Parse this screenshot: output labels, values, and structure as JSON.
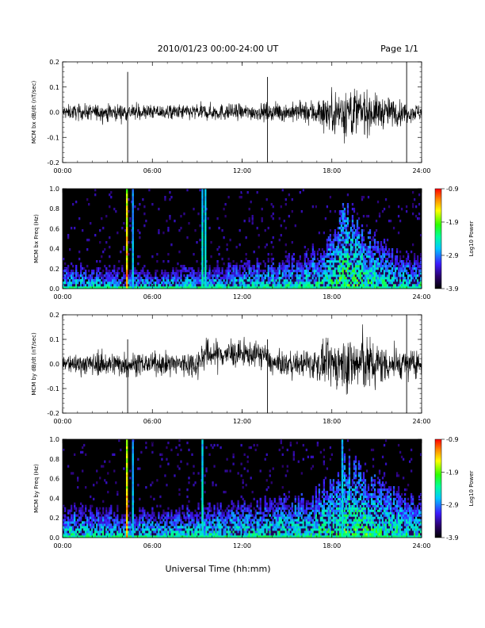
{
  "header": {
    "title": "2010/01/23  00:00-24:00 UT",
    "page": "Page 1/1"
  },
  "footer": {
    "xlabel": "Universal Time (hh:mm)"
  },
  "colors": {
    "trace": "#000000",
    "spectrogram_bg": "#000000"
  },
  "chart_data": [
    {
      "type": "line",
      "ylabel": "MCM bx dB/dt (nT/sec)",
      "xlim": [
        0,
        24
      ],
      "ylim": [
        -0.2,
        0.2
      ],
      "xticks": [
        "00:00",
        "06:00",
        "12:00",
        "18:00",
        "24:00"
      ],
      "yticks": [
        "-0.2",
        "-0.1",
        "0.0",
        "0.1",
        "0.2"
      ],
      "envelope": {
        "x_hours": [
          0,
          2,
          4,
          6,
          8,
          10,
          12,
          14,
          16,
          17,
          18,
          19,
          20,
          21,
          22,
          23,
          24
        ],
        "amplitude": [
          0.025,
          0.028,
          0.03,
          0.025,
          0.028,
          0.03,
          0.028,
          0.03,
          0.035,
          0.05,
          0.07,
          0.1,
          0.08,
          0.06,
          0.05,
          0.035,
          0.03
        ]
      },
      "spikes": [
        {
          "x": 4.35,
          "ymin": -0.2,
          "ymax": 0.16
        },
        {
          "x": 13.7,
          "ymin": -0.2,
          "ymax": 0.14
        },
        {
          "x": 23.0,
          "ymin": -0.2,
          "ymax": 0.2
        }
      ]
    },
    {
      "type": "heatmap",
      "ylabel": "MCM bx Freq (Hz)",
      "colorbar_label": "Log10 Power",
      "colorbar_ticks": [
        "-0.9",
        "-1.9",
        "-2.9",
        "-3.9"
      ],
      "clim": [
        -3.9,
        -0.9
      ],
      "xlim": [
        0,
        24
      ],
      "ylim": [
        0,
        1.0
      ],
      "xticks": [
        "00:00",
        "06:00",
        "12:00",
        "18:00",
        "24:00"
      ],
      "yticks": [
        "0.0",
        "0.2",
        "0.4",
        "0.6",
        "0.8",
        "1.0"
      ],
      "vertical_lines": [
        {
          "x": 4.3,
          "power": -1.2
        },
        {
          "x": 4.7,
          "power": -2.6
        },
        {
          "x": 9.35,
          "power": -2.4
        },
        {
          "x": 9.55,
          "power": -2.4
        }
      ],
      "activity": {
        "x_hours": [
          0,
          2,
          4,
          6,
          8,
          10,
          12,
          14,
          16,
          17,
          18,
          19,
          20,
          21,
          22,
          23,
          24
        ],
        "fmax_hz": [
          0.22,
          0.2,
          0.18,
          0.16,
          0.2,
          0.22,
          0.24,
          0.26,
          0.3,
          0.38,
          0.5,
          0.75,
          0.6,
          0.45,
          0.35,
          0.3,
          0.3
        ]
      }
    },
    {
      "type": "line",
      "ylabel": "MCM by dB/dt (nT/sec)",
      "xlim": [
        0,
        24
      ],
      "ylim": [
        -0.2,
        0.2
      ],
      "xticks": [
        "00:00",
        "06:00",
        "12:00",
        "18:00",
        "24:00"
      ],
      "yticks": [
        "-0.2",
        "-0.1",
        "0.0",
        "0.1",
        "0.2"
      ],
      "envelope": {
        "x_hours": [
          0,
          2,
          4,
          6,
          8,
          9.5,
          11,
          12.5,
          14,
          16,
          17,
          18,
          19,
          20,
          21,
          22,
          23,
          24
        ],
        "amplitude": [
          0.035,
          0.04,
          0.045,
          0.035,
          0.045,
          0.055,
          0.05,
          0.045,
          0.04,
          0.045,
          0.06,
          0.08,
          0.1,
          0.11,
          0.08,
          0.06,
          0.05,
          0.04
        ]
      },
      "baseline": {
        "x_hours": [
          0,
          9,
          9.5,
          13.5,
          14,
          24
        ],
        "y": [
          0.0,
          0.0,
          0.04,
          0.04,
          0.0,
          0.0
        ]
      },
      "spikes": [
        {
          "x": 4.35,
          "ymin": -0.2,
          "ymax": 0.1
        },
        {
          "x": 13.7,
          "ymin": -0.2,
          "ymax": 0.1
        },
        {
          "x": 23.0,
          "ymin": -0.2,
          "ymax": 0.2
        }
      ]
    },
    {
      "type": "heatmap",
      "ylabel": "MCM by Freq (Hz)",
      "colorbar_label": "Log10 Power",
      "colorbar_ticks": [
        "-0.9",
        "-1.9",
        "-2.9",
        "-3.9"
      ],
      "clim": [
        -3.9,
        -0.9
      ],
      "xlim": [
        0,
        24
      ],
      "ylim": [
        0,
        1.0
      ],
      "xticks": [
        "00:00",
        "06:00",
        "12:00",
        "18:00",
        "24:00"
      ],
      "yticks": [
        "0.0",
        "0.2",
        "0.4",
        "0.6",
        "0.8",
        "1.0"
      ],
      "vertical_lines": [
        {
          "x": 4.3,
          "power": -1.2
        },
        {
          "x": 4.7,
          "power": -2.6
        },
        {
          "x": 9.35,
          "power": -2.4
        },
        {
          "x": 18.7,
          "power": -2.5
        }
      ],
      "activity": {
        "x_hours": [
          0,
          2,
          4,
          6,
          8,
          10,
          12,
          14,
          16,
          17,
          18,
          19,
          20,
          21,
          22,
          23,
          24
        ],
        "fmax_hz": [
          0.3,
          0.28,
          0.26,
          0.25,
          0.28,
          0.3,
          0.32,
          0.35,
          0.4,
          0.45,
          0.55,
          0.7,
          0.65,
          0.55,
          0.45,
          0.4,
          0.38
        ]
      }
    }
  ]
}
